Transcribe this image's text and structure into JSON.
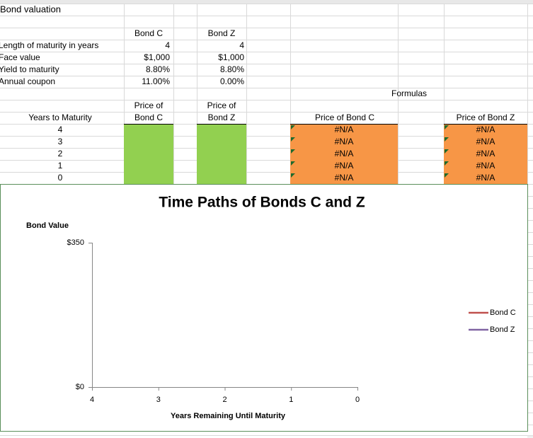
{
  "title": "Bond valuation",
  "inputs": {
    "headers": [
      "Bond C",
      "Bond Z"
    ],
    "rows": [
      {
        "label": "Length of maturity in years",
        "values": [
          "4",
          "4"
        ]
      },
      {
        "label": "Face value",
        "values": [
          "$1,000",
          "$1,000"
        ]
      },
      {
        "label": "Yield to maturity",
        "values": [
          "8.80%",
          "8.80%"
        ]
      },
      {
        "label": "Annual coupon",
        "values": [
          "11.00%",
          "0.00%"
        ]
      }
    ]
  },
  "formulas_label": "Formulas",
  "table": {
    "years_header": "Years to Maturity",
    "price_headers": [
      [
        "Price of",
        "Bond C"
      ],
      [
        "Price of",
        "Bond Z"
      ]
    ],
    "formula_headers": [
      "Price of Bond C",
      "Price of Bond Z"
    ],
    "years": [
      "4",
      "3",
      "2",
      "1",
      "0"
    ],
    "formula_values": [
      [
        "#N/A",
        "#N/A",
        "#N/A",
        "#N/A",
        "#N/A"
      ],
      [
        "#N/A",
        "#N/A",
        "#N/A",
        "#N/A",
        "#N/A"
      ]
    ]
  },
  "chart": {
    "title": "Time Paths of Bonds C and Z",
    "y_label": "Bond Value",
    "x_label": "Years Remaining Until Maturity",
    "ylim": [
      0,
      350
    ],
    "yticks": [
      {
        "value": 0,
        "label": "$0"
      },
      {
        "value": 350,
        "label": "$350"
      }
    ],
    "xlim": [
      4,
      0
    ],
    "xticks": [
      4,
      3,
      2,
      1,
      0
    ],
    "series": [
      {
        "name": "Bond C",
        "color": "#c0504d"
      },
      {
        "name": "Bond Z",
        "color": "#8064a2"
      }
    ]
  }
}
